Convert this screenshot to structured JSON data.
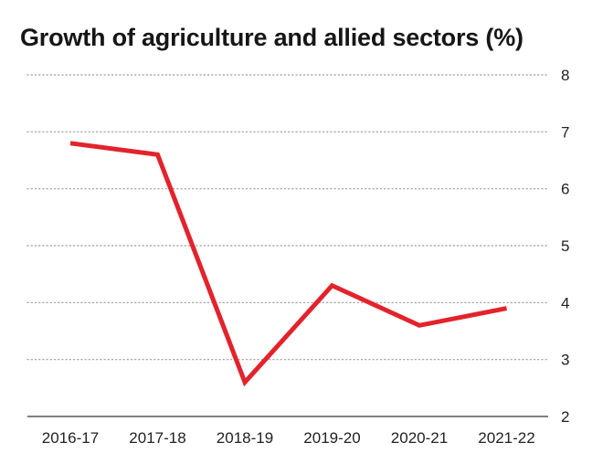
{
  "title": "Growth of agriculture and allied sectors (%)",
  "colors": {
    "line": "#e3232c",
    "grid": "#9a9a9a",
    "axis": "#333333",
    "text": "#222222"
  },
  "chart_data": {
    "type": "line",
    "title": "Growth of agriculture and allied sectors (%)",
    "xlabel": "",
    "ylabel": "",
    "categories": [
      "2016-17",
      "2017-18",
      "2018-19",
      "2019-20",
      "2020-21",
      "2021-22"
    ],
    "series": [
      {
        "values": [
          6.8,
          6.6,
          2.6,
          4.3,
          3.6,
          3.9
        ]
      }
    ],
    "ylim": [
      2,
      8
    ],
    "yticks": [
      2,
      3,
      4,
      5,
      6,
      7,
      8
    ],
    "y_axis_position": "right",
    "grid": "horizontal dotted",
    "legend": "none"
  }
}
